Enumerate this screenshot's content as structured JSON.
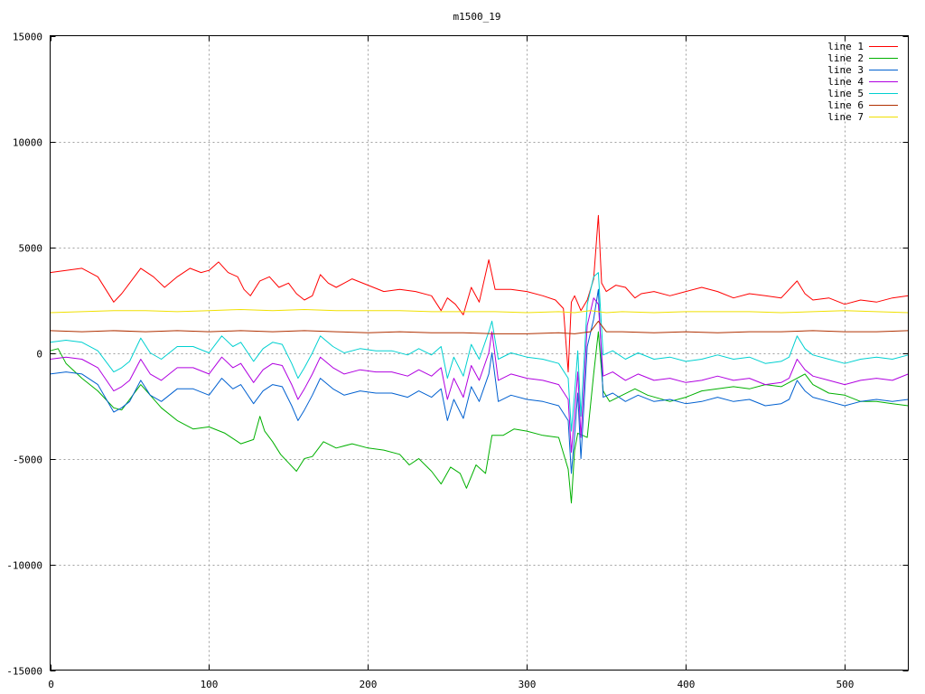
{
  "chart_data": {
    "type": "line",
    "title": "m1500_19",
    "xlabel": "",
    "ylabel": "",
    "xlim": [
      0,
      540
    ],
    "ylim": [
      -15000,
      15000
    ],
    "x_ticks": [
      0,
      100,
      200,
      300,
      400,
      500
    ],
    "y_ticks": [
      -15000,
      -10000,
      -5000,
      0,
      5000,
      10000,
      15000
    ],
    "grid": true,
    "legend_position": "top-right",
    "series": [
      {
        "name": "line 1",
        "color": "#ff0000",
        "x": [
          0,
          10,
          20,
          30,
          40,
          45,
          50,
          57,
          65,
          72,
          80,
          88,
          95,
          100,
          106,
          112,
          118,
          122,
          126,
          132,
          138,
          144,
          150,
          155,
          160,
          165,
          170,
          175,
          180,
          190,
          200,
          210,
          220,
          230,
          240,
          246,
          250,
          255,
          260,
          265,
          270,
          276,
          280,
          290,
          300,
          310,
          318,
          323,
          326,
          328,
          330,
          334,
          338,
          342,
          345,
          347,
          350,
          356,
          362,
          368,
          372,
          380,
          390,
          400,
          410,
          420,
          430,
          440,
          450,
          460,
          470,
          475,
          480,
          490,
          500,
          510,
          520,
          530,
          540
        ],
        "y": [
          3800,
          3900,
          4000,
          3600,
          2400,
          2800,
          3300,
          4000,
          3600,
          3100,
          3600,
          4000,
          3800,
          3900,
          4300,
          3800,
          3600,
          3000,
          2700,
          3400,
          3600,
          3100,
          3300,
          2800,
          2500,
          2700,
          3700,
          3300,
          3100,
          3500,
          3200,
          2900,
          3000,
          2900,
          2700,
          2000,
          2600,
          2300,
          1800,
          3100,
          2400,
          4400,
          3000,
          3000,
          2900,
          2700,
          2500,
          2100,
          -900,
          2400,
          2700,
          2000,
          2500,
          3500,
          6500,
          3300,
          2900,
          3200,
          3100,
          2600,
          2800,
          2900,
          2700,
          2900,
          3100,
          2900,
          2600,
          2800,
          2700,
          2600,
          3400,
          2800,
          2500,
          2600,
          2300,
          2500,
          2400,
          2600,
          2700
        ]
      },
      {
        "name": "line 2",
        "color": "#00b000",
        "x": [
          0,
          5,
          10,
          20,
          30,
          40,
          45,
          50,
          57,
          63,
          70,
          80,
          90,
          100,
          110,
          120,
          128,
          132,
          135,
          140,
          145,
          150,
          155,
          160,
          165,
          172,
          180,
          190,
          200,
          210,
          220,
          226,
          232,
          240,
          246,
          252,
          258,
          262,
          268,
          274,
          278,
          285,
          292,
          300,
          310,
          320,
          326,
          328,
          330,
          332,
          338,
          342,
          345,
          348,
          352,
          360,
          368,
          376,
          390,
          400,
          410,
          420,
          430,
          440,
          450,
          460,
          470,
          475,
          480,
          490,
          500,
          510,
          520,
          530,
          540
        ],
        "y": [
          100,
          200,
          -500,
          -1200,
          -1800,
          -2600,
          -2700,
          -2200,
          -1500,
          -2000,
          -2600,
          -3200,
          -3600,
          -3500,
          -3800,
          -4300,
          -4100,
          -3000,
          -3700,
          -4200,
          -4800,
          -5200,
          -5600,
          -5000,
          -4900,
          -4200,
          -4500,
          -4300,
          -4500,
          -4600,
          -4800,
          -5300,
          -5000,
          -5600,
          -6200,
          -5400,
          -5700,
          -6400,
          -5300,
          -5700,
          -3900,
          -3900,
          -3600,
          -3700,
          -3900,
          -4000,
          -5500,
          -7100,
          -4600,
          -3800,
          -4000,
          -1000,
          1000,
          -1800,
          -2300,
          -2000,
          -1700,
          -2000,
          -2300,
          -2100,
          -1800,
          -1700,
          -1600,
          -1700,
          -1500,
          -1600,
          -1200,
          -1000,
          -1500,
          -1900,
          -2000,
          -2300,
          -2300,
          -2400,
          -2500
        ]
      },
      {
        "name": "line 3",
        "color": "#0060d0",
        "x": [
          0,
          10,
          20,
          30,
          40,
          45,
          50,
          57,
          63,
          70,
          80,
          90,
          100,
          108,
          115,
          120,
          128,
          134,
          140,
          146,
          152,
          156,
          160,
          165,
          170,
          178,
          185,
          195,
          205,
          215,
          225,
          232,
          240,
          246,
          250,
          254,
          260,
          265,
          270,
          276,
          278,
          282,
          290,
          300,
          310,
          320,
          326,
          328,
          330,
          332,
          334,
          338,
          342,
          345,
          348,
          354,
          362,
          370,
          380,
          390,
          400,
          410,
          420,
          430,
          440,
          450,
          460,
          465,
          470,
          475,
          480,
          490,
          500,
          510,
          520,
          530,
          540
        ],
        "y": [
          -1000,
          -900,
          -1000,
          -1500,
          -2800,
          -2600,
          -2300,
          -1300,
          -2000,
          -2300,
          -1700,
          -1700,
          -2000,
          -1200,
          -1700,
          -1500,
          -2400,
          -1800,
          -1500,
          -1600,
          -2500,
          -3200,
          -2700,
          -2000,
          -1200,
          -1700,
          -2000,
          -1800,
          -1900,
          -1900,
          -2100,
          -1800,
          -2100,
          -1700,
          -3200,
          -2200,
          -3100,
          -1600,
          -2300,
          -1000,
          0,
          -2300,
          -2000,
          -2200,
          -2300,
          -2500,
          -3200,
          -5700,
          -3900,
          -1900,
          -5000,
          300,
          1600,
          3000,
          -2100,
          -1900,
          -2300,
          -2000,
          -2300,
          -2200,
          -2400,
          -2300,
          -2100,
          -2300,
          -2200,
          -2500,
          -2400,
          -2200,
          -1300,
          -1800,
          -2100,
          -2300,
          -2500,
          -2300,
          -2200,
          -2300,
          -2200
        ]
      },
      {
        "name": "line 4",
        "color": "#b000e0",
        "x": [
          0,
          10,
          20,
          30,
          40,
          45,
          50,
          57,
          63,
          70,
          80,
          90,
          100,
          108,
          115,
          120,
          128,
          134,
          140,
          146,
          152,
          156,
          160,
          165,
          170,
          178,
          185,
          195,
          205,
          215,
          225,
          232,
          240,
          246,
          250,
          254,
          260,
          265,
          270,
          276,
          278,
          282,
          290,
          300,
          310,
          320,
          326,
          328,
          330,
          332,
          334,
          338,
          342,
          345,
          348,
          354,
          362,
          370,
          380,
          390,
          400,
          410,
          420,
          430,
          440,
          450,
          460,
          465,
          470,
          475,
          480,
          490,
          500,
          510,
          520,
          530,
          540
        ],
        "y": [
          -300,
          -200,
          -300,
          -700,
          -1800,
          -1600,
          -1300,
          -300,
          -1000,
          -1300,
          -700,
          -700,
          -1000,
          -200,
          -700,
          -500,
          -1400,
          -800,
          -500,
          -600,
          -1500,
          -2200,
          -1700,
          -1000,
          -200,
          -700,
          -1000,
          -800,
          -900,
          -900,
          -1100,
          -800,
          -1100,
          -700,
          -2200,
          -1200,
          -2100,
          -600,
          -1300,
          0,
          1000,
          -1300,
          -1000,
          -1200,
          -1300,
          -1500,
          -2200,
          -4700,
          -2900,
          -900,
          -4000,
          1300,
          2600,
          2300,
          -1100,
          -900,
          -1300,
          -1000,
          -1300,
          -1200,
          -1400,
          -1300,
          -1100,
          -1300,
          -1200,
          -1500,
          -1400,
          -1200,
          -300,
          -800,
          -1100,
          -1300,
          -1500,
          -1300,
          -1200,
          -1300,
          -1000
        ]
      },
      {
        "name": "line 5",
        "color": "#00d0d0",
        "x": [
          0,
          10,
          20,
          30,
          40,
          45,
          50,
          57,
          63,
          70,
          80,
          90,
          100,
          108,
          115,
          120,
          128,
          134,
          140,
          146,
          152,
          156,
          160,
          165,
          170,
          178,
          185,
          195,
          205,
          215,
          225,
          232,
          240,
          246,
          250,
          254,
          260,
          265,
          270,
          276,
          278,
          282,
          290,
          300,
          310,
          320,
          326,
          328,
          330,
          332,
          334,
          338,
          342,
          345,
          348,
          354,
          362,
          370,
          380,
          390,
          400,
          410,
          420,
          430,
          440,
          450,
          460,
          465,
          470,
          475,
          480,
          490,
          500,
          510,
          520,
          530,
          540
        ],
        "y": [
          500,
          600,
          500,
          100,
          -900,
          -700,
          -400,
          700,
          0,
          -300,
          300,
          300,
          0,
          800,
          300,
          500,
          -400,
          200,
          500,
          400,
          -500,
          -1200,
          -700,
          0,
          800,
          300,
          0,
          200,
          100,
          100,
          -100,
          200,
          -100,
          300,
          -1200,
          -200,
          -1100,
          400,
          -300,
          1000,
          1500,
          -300,
          0,
          -200,
          -300,
          -500,
          -1200,
          -3700,
          -1900,
          100,
          -3000,
          2300,
          3600,
          3800,
          -100,
          100,
          -300,
          0,
          -300,
          -200,
          -400,
          -300,
          -100,
          -300,
          -200,
          -500,
          -400,
          -200,
          800,
          200,
          -100,
          -300,
          -500,
          -300,
          -200,
          -300,
          -100
        ]
      },
      {
        "name": "line 6",
        "color": "#b03000",
        "x": [
          0,
          20,
          40,
          60,
          80,
          100,
          120,
          140,
          160,
          180,
          200,
          220,
          240,
          260,
          280,
          300,
          320,
          330,
          340,
          345,
          350,
          360,
          380,
          400,
          420,
          440,
          460,
          480,
          500,
          520,
          540
        ],
        "y": [
          1050,
          1000,
          1050,
          1000,
          1050,
          1000,
          1050,
          1000,
          1050,
          1000,
          950,
          1000,
          950,
          950,
          900,
          900,
          950,
          900,
          1000,
          1500,
          1000,
          1000,
          950,
          1000,
          950,
          1000,
          1000,
          1050,
          1000,
          1000,
          1050
        ]
      },
      {
        "name": "line 7",
        "color": "#f0e000",
        "x": [
          0,
          20,
          40,
          60,
          80,
          100,
          120,
          140,
          160,
          180,
          200,
          220,
          240,
          260,
          280,
          300,
          320,
          330,
          340,
          350,
          360,
          380,
          400,
          420,
          440,
          460,
          480,
          500,
          520,
          540
        ],
        "y": [
          1900,
          1950,
          2000,
          2000,
          1950,
          2000,
          2050,
          2000,
          2050,
          2000,
          2000,
          2000,
          1950,
          1950,
          1950,
          1900,
          1950,
          1900,
          2000,
          1900,
          1950,
          1900,
          1950,
          1950,
          1950,
          1900,
          1950,
          2000,
          1950,
          1900
        ]
      }
    ]
  }
}
